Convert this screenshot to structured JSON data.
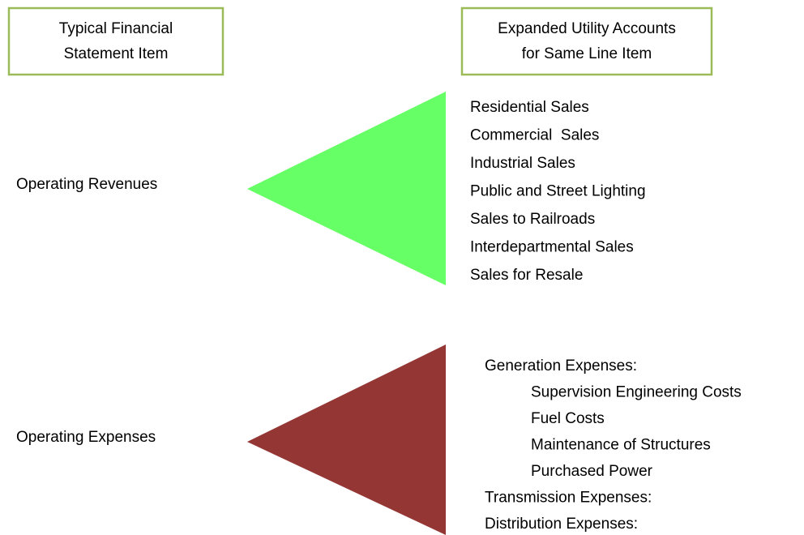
{
  "headers": {
    "left": [
      "Typical Financial",
      "Statement Item"
    ],
    "right": [
      "Expanded Utility Accounts",
      "for Same Line Item"
    ]
  },
  "sections": [
    {
      "label": "Operating Revenues",
      "items": [
        {
          "label": "Residential Sales"
        },
        {
          "label": "Commercial  Sales"
        },
        {
          "label": "Industrial Sales"
        },
        {
          "label": "Public and Street Lighting"
        },
        {
          "label": "Sales to Railroads"
        },
        {
          "label": "Interdepartmental Sales"
        },
        {
          "label": "Sales for Resale"
        }
      ]
    },
    {
      "label": "Operating Expenses",
      "items": [
        {
          "label": "Generation Expenses:",
          "items": [
            "Supervision Engineering Costs",
            "Fuel Costs",
            "Maintenance of Structures",
            "Purchased Power"
          ]
        },
        {
          "label": "Transmission Expenses:"
        },
        {
          "label": "Distribution Expenses:"
        }
      ]
    }
  ]
}
